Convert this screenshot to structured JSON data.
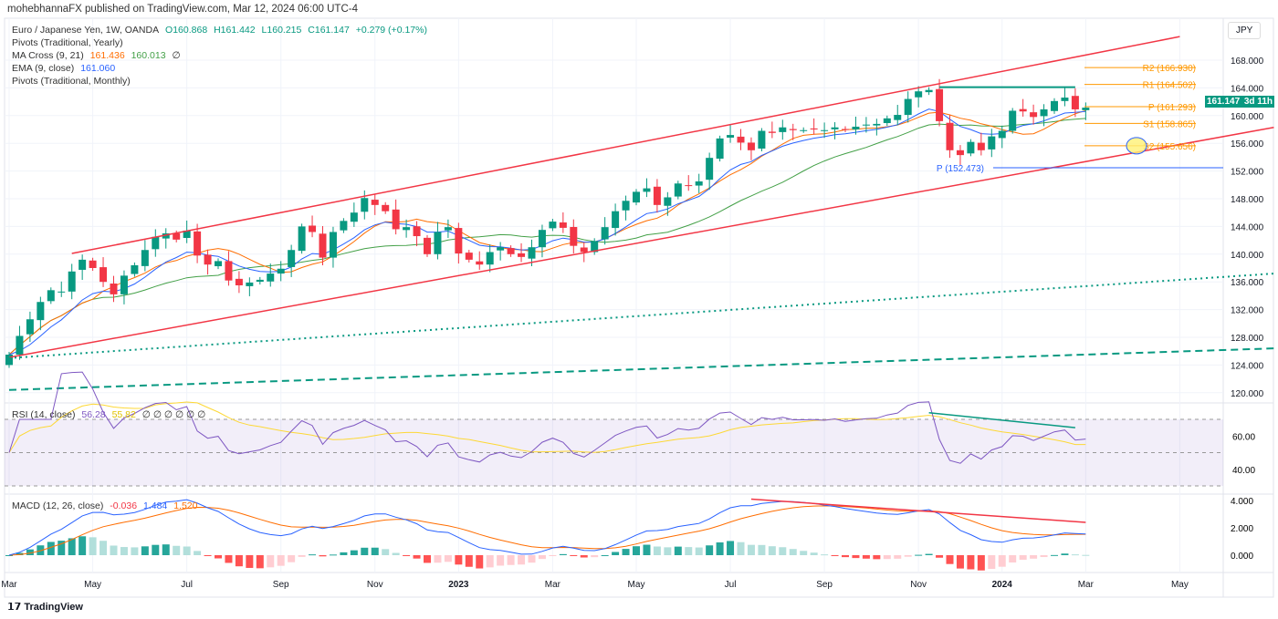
{
  "header": {
    "publisher": "mohebhannaFX published on TradingView.com, Mar 12, 2024 06:00 UTC-4"
  },
  "legend": {
    "symbol": "Euro / Japanese Yen, 1W, OANDA",
    "open": "O160.868",
    "high": "H161.442",
    "low": "L160.215",
    "close": "C161.147",
    "change": "+0.279 (+0.17%)",
    "pivots_yearly": "Pivots (Traditional, Yearly)",
    "ma_cross": "MA Cross (9, 21)",
    "ma_fast": "161.436",
    "ma_slow": "160.013",
    "ma_null": "∅",
    "ema": "EMA (9, close)",
    "ema_val": "161.060",
    "pivots_monthly": "Pivots (Traditional, Monthly)",
    "rsi": "RSI (14, close)",
    "rsi_val": "56.28",
    "rsi_ma": "55.82",
    "rsi_nulls": "∅ ∅ ∅ ∅ ∅ ∅",
    "macd": "MACD (12, 26, close)",
    "macd_hist": "-0.036",
    "macd_line": "1.484",
    "macd_signal": "1.520"
  },
  "currency": "JPY",
  "price_tag": {
    "price": "161.147",
    "countdown": "3d 11h"
  },
  "footer": {
    "logo": "TradingView"
  },
  "colors": {
    "up": "#089981",
    "down": "#f23645",
    "ema": "#2962ff",
    "ma_fast": "#ff6d00",
    "ma_slow": "#43a047",
    "channel": "#f23645",
    "pivot": "#ff9800",
    "rsi": "#7e57c2",
    "rsi_ma": "#fdd835"
  },
  "chart_data": {
    "type": "candlestick",
    "title": "Euro / Japanese Yen, 1W, OANDA",
    "ylim": [
      118,
      170
    ],
    "yticks": [
      "168.000",
      "164.000",
      "160.000",
      "156.000",
      "152.000",
      "148.000",
      "144.000",
      "140.000",
      "136.000",
      "132.000",
      "128.000",
      "124.000",
      "120.000"
    ],
    "xticks": [
      {
        "label": "Mar",
        "week": 0
      },
      {
        "label": "May",
        "week": 8
      },
      {
        "label": "Jul",
        "week": 17
      },
      {
        "label": "Sep",
        "week": 26
      },
      {
        "label": "Nov",
        "week": 35
      },
      {
        "label": "2023",
        "week": 43
      },
      {
        "label": "Mar",
        "week": 52
      },
      {
        "label": "May",
        "week": 60
      },
      {
        "label": "Jul",
        "week": 69
      },
      {
        "label": "Sep",
        "week": 78
      },
      {
        "label": "Nov",
        "week": 87
      },
      {
        "label": "2024",
        "week": 95
      },
      {
        "label": "Mar",
        "week": 103
      },
      {
        "label": "May",
        "week": 112
      }
    ],
    "closes": [
      125.5,
      128.2,
      130.6,
      133.1,
      134.8,
      134.6,
      137.5,
      139.2,
      138.0,
      136.0,
      134.2,
      136.9,
      138.4,
      140.6,
      142.5,
      143.0,
      142.1,
      143.4,
      139.8,
      138.5,
      139.0,
      136.2,
      135.5,
      135.9,
      136.3,
      137.2,
      137.9,
      140.6,
      144.0,
      143.2,
      139.5,
      143.2,
      144.8,
      146.0,
      148.1,
      147.1,
      146.2,
      143.6,
      143.9,
      142.6,
      140.0,
      143.2,
      143.9,
      140.1,
      139.2,
      138.5,
      140.3,
      141.0,
      140.0,
      139.6,
      141.0,
      143.5,
      144.7,
      143.8,
      141.2,
      140.3,
      141.9,
      143.9,
      146.2,
      147.7,
      149.0,
      149.5,
      147.1,
      148.2,
      150.2,
      149.9,
      150.5,
      153.9,
      156.7,
      157.2,
      156.1,
      155.0,
      157.8,
      157.5,
      158.3,
      157.9,
      157.9,
      158.0,
      157.9,
      158.3,
      158.0,
      158.4,
      158.7,
      158.8,
      159.6,
      160.1,
      162.4,
      163.5,
      163.7,
      159.2,
      155.0,
      154.3,
      156.2,
      155.0,
      157.0,
      157.8,
      160.7,
      160.6,
      159.8,
      160.9,
      162.1,
      162.6,
      160.9,
      161.147
    ],
    "pivots_monthly": [
      {
        "label": "R2 (166.930)",
        "value": 166.93
      },
      {
        "label": "R1 (164.502)",
        "value": 164.502
      },
      {
        "label": "P (161.293)",
        "value": 161.293
      },
      {
        "label": "S1 (158.865)",
        "value": 158.865
      },
      {
        "label": "S2 (155.656)",
        "value": 155.656
      }
    ],
    "pivot_yearly": {
      "label": "P (152.473)",
      "value": 152.473
    },
    "trendlines": [
      {
        "name": "upper-channel",
        "from": [
          6,
          140.1
        ],
        "to": [
          112,
          171.4
        ],
        "style": "solid"
      },
      {
        "name": "lower-channel",
        "from": [
          0,
          125.1
        ],
        "to": [
          121,
          158.3
        ],
        "style": "solid"
      },
      {
        "name": "dotted-trend",
        "from": [
          0,
          125.0
        ],
        "to": [
          121,
          137.2
        ],
        "style": "dotted"
      },
      {
        "name": "dashed-trend",
        "from": [
          0,
          120.4
        ],
        "to": [
          121,
          126.4
        ],
        "style": "dashed"
      },
      {
        "name": "resistance",
        "from": [
          89,
          164.1
        ],
        "to": [
          102,
          164.1
        ],
        "style": "solid-green"
      }
    ],
    "rsi_ticks": [
      "60.00",
      "40.00"
    ],
    "macd_ticks": [
      "4.000",
      "2.000",
      "0.000"
    ]
  }
}
